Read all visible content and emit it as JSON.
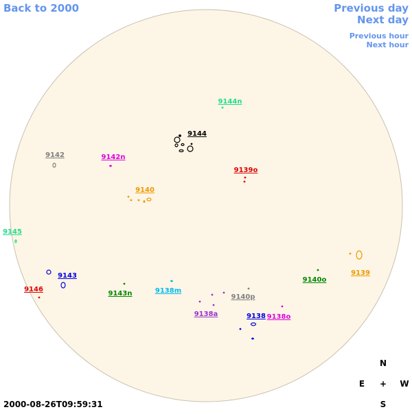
{
  "navigation": {
    "back": "Back to 2000",
    "previous_day": "Previous day",
    "next_day": "Next day",
    "previous_hour": "Previous hour",
    "next_hour": "Next hour"
  },
  "timestamp": "2000-08-26T09:59:31",
  "compass": {
    "north": "N",
    "east": "E",
    "center": "+",
    "west": "W",
    "south": "S"
  },
  "regions": [
    {
      "label": "9144n",
      "color": "#22dd88"
    },
    {
      "label": "9144",
      "color": "#000000"
    },
    {
      "label": "9142",
      "color": "#808080"
    },
    {
      "label": "9142n",
      "color": "#dd00dd"
    },
    {
      "label": "9139o",
      "color": "#dd0000"
    },
    {
      "label": "9140",
      "color": "#ee9900"
    },
    {
      "label": "9145",
      "color": "#22dd88"
    },
    {
      "label": "9143",
      "color": "#0000dd"
    },
    {
      "label": "9146",
      "color": "#dd0000"
    },
    {
      "label": "9143n",
      "color": "#008800"
    },
    {
      "label": "9138m",
      "color": "#00bbee"
    },
    {
      "label": "9140p",
      "color": "#808080"
    },
    {
      "label": "9138a",
      "color": "#9933cc"
    },
    {
      "label": "9138",
      "color": "#0000dd"
    },
    {
      "label": "9138o",
      "color": "#dd00dd"
    },
    {
      "label": "9140o",
      "color": "#008800"
    },
    {
      "label": "9139",
      "color": "#ee9900"
    }
  ]
}
